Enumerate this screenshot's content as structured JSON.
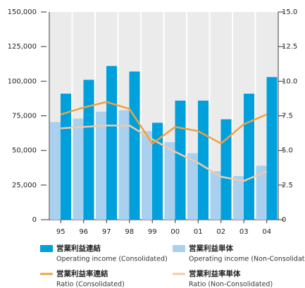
{
  "chart_data": {
    "type": "bar-line",
    "categories": [
      "95",
      "96",
      "97",
      "98",
      "99",
      "00",
      "01",
      "02",
      "03",
      "04"
    ],
    "series": [
      {
        "name": "営業利益連結",
        "label_en": "Operating income (Consolidated)",
        "color": "#00a0dc",
        "values": [
          91000,
          101000,
          111000,
          107000,
          70000,
          86000,
          86000,
          72500,
          91000,
          103000
        ]
      },
      {
        "name": "営業利益単体",
        "label_en": "Operating income (Non-Consolidated)",
        "color": "#a9d0ee",
        "values": [
          70500,
          73000,
          78000,
          79000,
          64000,
          56000,
          48000,
          35000,
          31500,
          39000
        ]
      },
      {
        "name": "営業利益率連結",
        "label_en": "Ratio (Consolidated)",
        "color": "#f0a040",
        "axis": "y2",
        "values": [
          7.6,
          8.1,
          8.5,
          8.0,
          5.5,
          6.7,
          6.4,
          5.5,
          6.9,
          7.6
        ]
      },
      {
        "name": "営業利益率単体",
        "label_en": "Ratio (Non-Consolidated)",
        "color": "#f5c9a5",
        "axis": "y2",
        "values": [
          6.6,
          6.7,
          6.8,
          6.8,
          5.8,
          4.9,
          4.1,
          3.1,
          2.8,
          3.5
        ]
      }
    ],
    "ylim": [
      0,
      150000
    ],
    "yticks": [
      0,
      {
        "value": 25000,
        "label": "25,000"
      },
      {
        "value": 50000,
        "label": "50,000"
      },
      {
        "value": 75000,
        "label": "75,000"
      },
      {
        "value": 100000,
        "label": "100,000"
      },
      {
        "value": 125000,
        "label": "125,000"
      },
      {
        "value": 150000,
        "label": "150,000"
      }
    ],
    "y2lim": [
      0,
      15
    ],
    "y2ticks": [
      0,
      2.5,
      {
        "value": 5,
        "label": "5.0"
      },
      7.5,
      {
        "value": 10,
        "label": "10.0"
      },
      12.5,
      {
        "value": 15,
        "label": "15.0"
      }
    ],
    "band_color": "#ebebeb"
  }
}
